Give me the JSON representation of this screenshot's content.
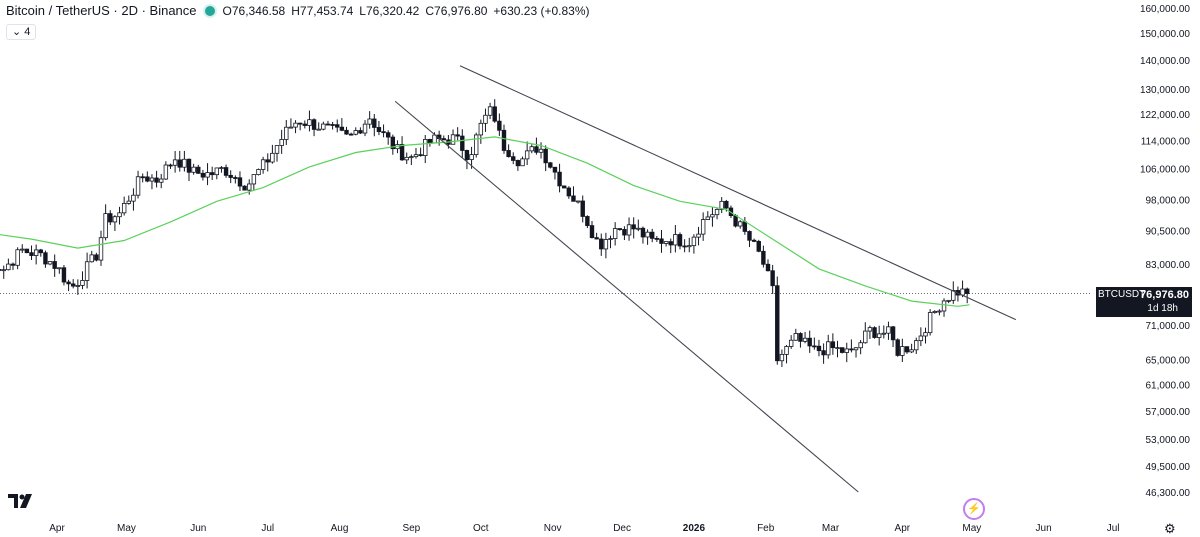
{
  "legend": {
    "title": "Bitcoin / TetherUS · 2D · Binance",
    "open": "O76,346.58",
    "high": "H77,453.74",
    "low": "L76,320.42",
    "close": "C76,976.80",
    "change": "+630.23 (+0.83%)",
    "indicator_count": "4"
  },
  "price_tag": {
    "symbol": "BTCUSDT",
    "price": "76,976.80",
    "countdown": "1d 18h"
  },
  "icons": {
    "logo": "tradingview-logo-icon",
    "settings": "gear-icon",
    "bolt": "lightning-icon"
  },
  "colors": {
    "up": "#089981",
    "candle": "#131722",
    "ma": "#5ad15a",
    "trendline": "#434651"
  },
  "chart_data": {
    "type": "candlestick",
    "y_scale": "log",
    "y_ticks": [
      "160,000.00",
      "150,000.00",
      "140,000.00",
      "130,000.00",
      "122,000.00",
      "114,000.00",
      "106,000.00",
      "98,000.00",
      "90,500.00",
      "83,000.00",
      "77,000.00",
      "71,000.00",
      "65,000.00",
      "61,000.00",
      "57,000.00",
      "53,000.00",
      "49,500.00",
      "46,300.00"
    ],
    "y_tick_values": [
      160000,
      150000,
      140000,
      130000,
      122000,
      114000,
      106000,
      98000,
      90500,
      83000,
      77000,
      71000,
      65000,
      61000,
      57000,
      53000,
      49500,
      46300
    ],
    "x_ticks": [
      "Apr",
      "May",
      "Jun",
      "Jul",
      "Aug",
      "Sep",
      "Oct",
      "Nov",
      "Dec",
      "2026",
      "Feb",
      "Mar",
      "Apr",
      "May",
      "Jun",
      "Jul"
    ],
    "x_tick_dates": [
      "2025-04-01",
      "2025-05-01",
      "2025-06-01",
      "2025-07-01",
      "2025-08-01",
      "2025-09-01",
      "2025-10-01",
      "2025-11-01",
      "2025-12-01",
      "2026-01-01",
      "2026-02-01",
      "2026-03-01",
      "2026-04-01",
      "2026-05-01",
      "2026-06-01",
      "2026-07-01"
    ],
    "bold_ticks": [
      "2026"
    ],
    "last_price": 76976.8,
    "series": [
      {
        "kind": "close_path",
        "x": [
          "2025-03-01",
          "2025-03-09",
          "2025-03-17",
          "2025-03-25",
          "2025-04-01",
          "2025-04-07",
          "2025-04-10",
          "2025-04-18",
          "2025-04-22",
          "2025-04-28",
          "2025-05-08",
          "2025-05-14",
          "2025-05-22",
          "2025-05-30",
          "2025-06-06",
          "2025-06-12",
          "2025-06-22",
          "2025-06-30",
          "2025-07-10",
          "2025-07-14",
          "2025-07-20",
          "2025-07-30",
          "2025-08-05",
          "2025-08-14",
          "2025-08-18",
          "2025-08-26",
          "2025-09-01",
          "2025-09-10",
          "2025-09-20",
          "2025-09-26",
          "2025-10-02",
          "2025-10-06",
          "2025-10-10",
          "2025-10-18",
          "2025-10-26",
          "2025-11-04",
          "2025-11-14",
          "2025-11-21",
          "2025-11-28",
          "2025-12-06",
          "2025-12-14",
          "2025-12-22",
          "2025-12-30",
          "2026-01-06",
          "2026-01-14",
          "2026-01-22",
          "2026-01-30",
          "2026-02-04",
          "2026-02-06",
          "2026-02-14",
          "2026-02-22",
          "2026-03-01",
          "2026-03-10",
          "2026-03-18",
          "2026-03-26",
          "2026-03-30",
          "2026-04-06",
          "2026-04-12",
          "2026-04-18",
          "2026-04-24",
          "2026-04-30"
        ],
        "y": [
          84000,
          82000,
          86000,
          85000,
          82500,
          78000,
          79500,
          85000,
          93000,
          94500,
          104000,
          103000,
          109000,
          105000,
          104500,
          106000,
          101500,
          107500,
          117500,
          120000,
          119000,
          116500,
          114500,
          121000,
          117000,
          111000,
          109000,
          114000,
          114500,
          109500,
          120000,
          123500,
          113000,
          108000,
          112500,
          103000,
          95000,
          87000,
          91000,
          91000,
          88000,
          88500,
          88000,
          93500,
          96500,
          90500,
          84500,
          77500,
          65000,
          68500,
          66500,
          67000,
          66000,
          70000,
          69500,
          66500,
          67500,
          71500,
          75500,
          77500,
          76976.8
        ]
      },
      {
        "kind": "moving_average",
        "x": [
          "2025-03-01",
          "2025-03-21",
          "2025-04-10",
          "2025-04-30",
          "2025-05-20",
          "2025-06-09",
          "2025-06-29",
          "2025-07-19",
          "2025-08-08",
          "2025-08-28",
          "2025-09-17",
          "2025-10-07",
          "2025-10-27",
          "2025-11-16",
          "2025-12-06",
          "2025-12-26",
          "2026-01-15",
          "2026-02-04",
          "2026-02-24",
          "2026-03-16",
          "2026-04-05",
          "2026-04-25",
          "2026-04-30"
        ],
        "y": [
          90000,
          88500,
          86500,
          88200,
          92500,
          97500,
          101000,
          106500,
          110500,
          112500,
          113500,
          115000,
          112500,
          107500,
          101500,
          97500,
          95500,
          88500,
          82000,
          78500,
          75500,
          74500,
          74800
        ]
      },
      {
        "kind": "trendline",
        "x": [
          "2025-09-22",
          "2026-05-20"
        ],
        "y": [
          138000,
          72000
        ]
      },
      {
        "kind": "trendline",
        "x": [
          "2025-08-25",
          "2026-03-13"
        ],
        "y": [
          126000,
          46300
        ]
      }
    ]
  }
}
